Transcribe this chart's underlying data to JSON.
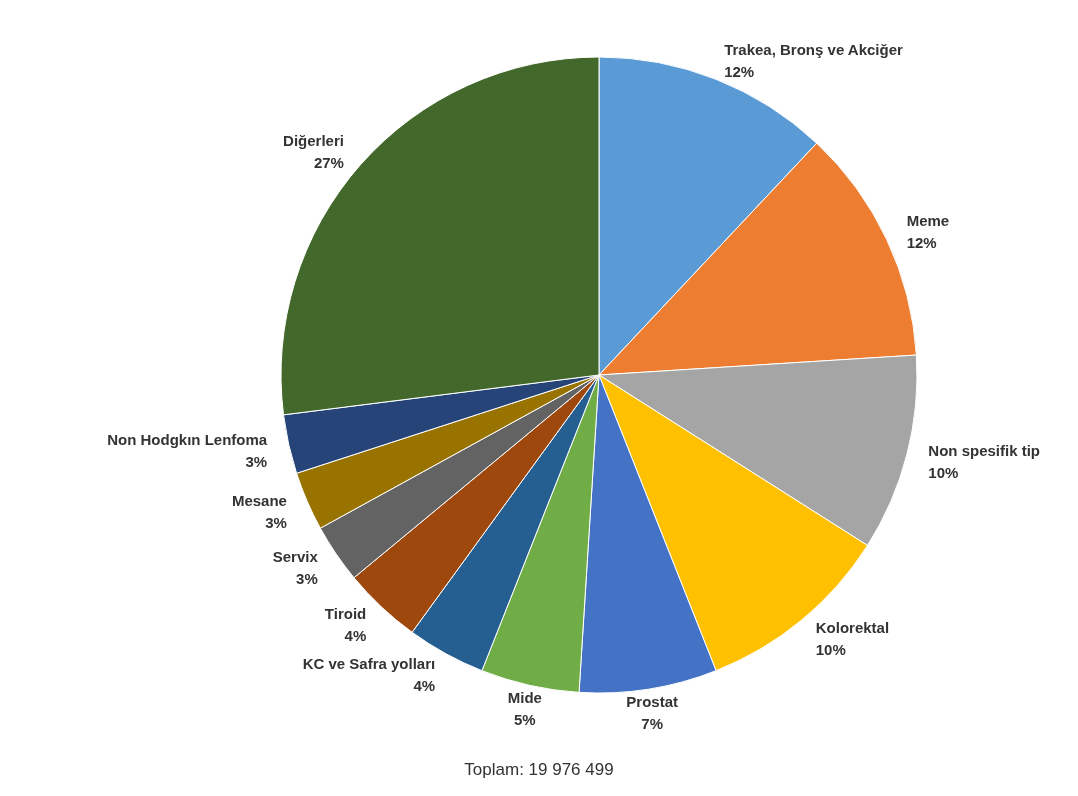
{
  "chart_data": {
    "type": "pie",
    "categories": [
      "Trakea, Bronş ve Akciğer",
      "Meme",
      "Non spesifik tip",
      "Kolorektal",
      "Prostat",
      "Mide",
      "KC ve Safra yolları",
      "Tiroid",
      "Servix",
      "Mesane",
      "Non Hodgkın Lenfoma",
      "Diğerleri"
    ],
    "values": [
      12,
      12,
      10,
      10,
      7,
      5,
      4,
      4,
      3,
      3,
      3,
      27
    ],
    "colors": [
      "#5b9bd5",
      "#ed7d31",
      "#a5a5a5",
      "#ffc000",
      "#4472c4",
      "#70ad47",
      "#255e91",
      "#9e480e",
      "#636363",
      "#997300",
      "#264478",
      "#43682b"
    ],
    "value_labels": [
      "12%",
      "12%",
      "10%",
      "10%",
      "7%",
      "5%",
      "4%",
      "4%",
      "3%",
      "3%",
      "3%",
      "27%"
    ],
    "annotations": [
      "Toplam: 19 976 499"
    ]
  }
}
